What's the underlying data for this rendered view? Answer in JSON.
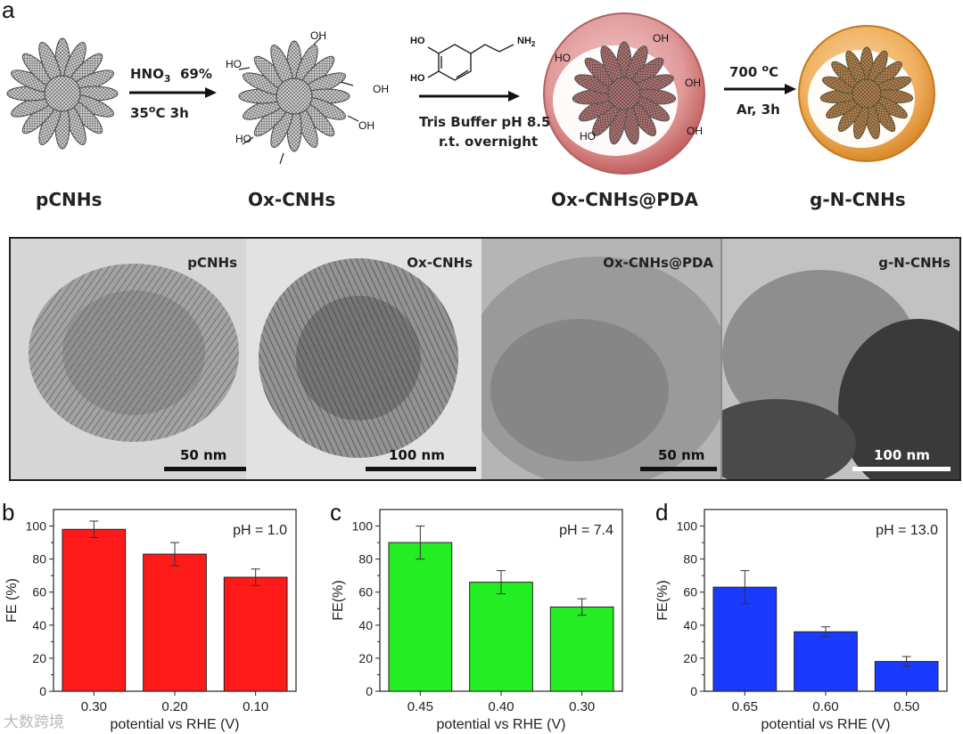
{
  "panel_letters": {
    "a": "a",
    "b": "b",
    "c": "c",
    "d": "d"
  },
  "scheme": {
    "steps": [
      {
        "label": "pCNHs"
      },
      {
        "label": "Ox-CNHs"
      },
      {
        "label": "Ox-CNHs@PDA"
      },
      {
        "label": "g-N-CNHs"
      }
    ],
    "arrow1": {
      "hno3": "HNO",
      "sub3": "3",
      "pct": "69%",
      "temp": "35",
      "deg": "o",
      "temp_unit": "C  3h"
    },
    "arrow2": {
      "line1": "Tris Buffer pH 8.5",
      "line2": "r.t. overnight",
      "oh": "HO",
      "nh2": "NH"
    },
    "arrow3": {
      "temp": "700 ",
      "deg": "o",
      "unit": "C",
      "line2": "Ar, 3h"
    },
    "cooh": "OH",
    "oh_a": "HO"
  },
  "tem_images": [
    {
      "title": "pCNHs",
      "scale": "50 nm"
    },
    {
      "title": "Ox-CNHs",
      "scale": "100 nm"
    },
    {
      "title": "Ox-CNHs@PDA",
      "scale": "50 nm"
    },
    {
      "title": "g-N-CNHs",
      "scale": "100 nm"
    }
  ],
  "watermark": "大数跨境",
  "chart_data": [
    {
      "type": "bar",
      "panel": "b",
      "title": "pH = 1.0",
      "color": "#ff1a1a",
      "categories": [
        "0.30",
        "0.20",
        "0.10"
      ],
      "values": [
        98,
        83,
        69
      ],
      "errors": [
        5,
        7,
        5
      ],
      "xlabel": "potential vs RHE (V)",
      "ylabel": "FE (%)",
      "ylim": [
        0,
        110
      ],
      "yticks": [
        "0",
        "20",
        "40",
        "60",
        "80",
        "100"
      ]
    },
    {
      "type": "bar",
      "panel": "c",
      "title": "pH = 7.4",
      "color": "#22ee22",
      "categories": [
        "0.45",
        "0.40",
        "0.30"
      ],
      "values": [
        90,
        66,
        51
      ],
      "errors": [
        10,
        7,
        5
      ],
      "xlabel": "potential vs RHE (V)",
      "ylabel": "FE(%)",
      "ylim": [
        0,
        110
      ],
      "yticks": [
        "0",
        "20",
        "40",
        "60",
        "80",
        "100"
      ]
    },
    {
      "type": "bar",
      "panel": "d",
      "title": "pH = 13.0",
      "color": "#1a3aff",
      "categories": [
        "0.65",
        "0.60",
        "0.50"
      ],
      "values": [
        63,
        36,
        18
      ],
      "errors": [
        10,
        3,
        3
      ],
      "xlabel": "potential vs RHE (V)",
      "ylabel": "FE(%)",
      "ylim": [
        0,
        110
      ],
      "yticks": [
        "0",
        "20",
        "40",
        "60",
        "80",
        "100"
      ]
    }
  ]
}
